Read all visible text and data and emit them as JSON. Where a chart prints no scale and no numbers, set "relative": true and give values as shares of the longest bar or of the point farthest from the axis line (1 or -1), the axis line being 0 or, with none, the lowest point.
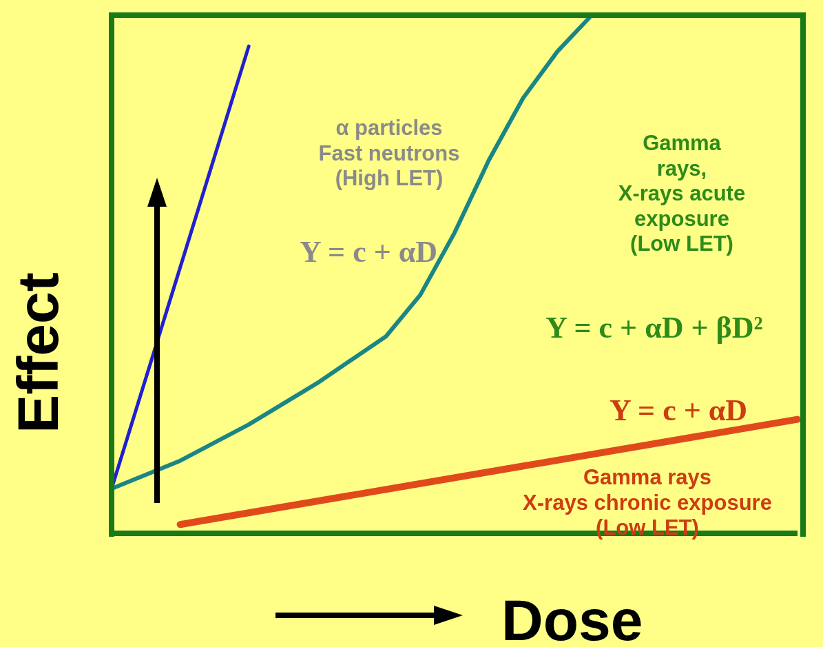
{
  "chart_data": {
    "type": "line",
    "relative": true,
    "xlabel": "Dose",
    "ylabel": "Effect",
    "categories": [
      null,
      null,
      null,
      null,
      null,
      null,
      null,
      null,
      null,
      null,
      null,
      null,
      null,
      null,
      null,
      null,
      null,
      null,
      null,
      null,
      null
    ],
    "series": [
      {
        "color": "#2020d0",
        "values": [
          0.086,
          null,
          null,
          null,
          0.94,
          null,
          null,
          null,
          null,
          null,
          null,
          null,
          null,
          null,
          null,
          null,
          null,
          null,
          null,
          null,
          null
        ]
      },
      {
        "color": "#1a8585",
        "values": [
          0.086,
          null,
          0.14,
          null,
          0.21,
          null,
          0.29,
          null,
          0.38,
          0.46,
          0.58,
          0.72,
          0.84,
          0.93,
          1,
          null,
          null,
          null,
          null,
          null,
          null
        ]
      },
      {
        "color": "#e04a1a",
        "values": [
          null,
          null,
          0.017,
          null,
          null,
          null,
          null,
          null,
          null,
          null,
          null,
          null,
          null,
          null,
          null,
          null,
          null,
          null,
          null,
          null,
          0.22
        ]
      }
    ],
    "annotations": [
      "α particles\nFast neutrons\n(High LET)",
      "Y = c + αD",
      "Gamma\nrays,\nX-rays acute\nexposure\n(Low LET)",
      "Y = c + αD + βD²",
      "Y = c + αD",
      "Gamma rays\nX-rays chronic exposure\n(Low LET)"
    ],
    "legend": false,
    "grid": false
  }
}
